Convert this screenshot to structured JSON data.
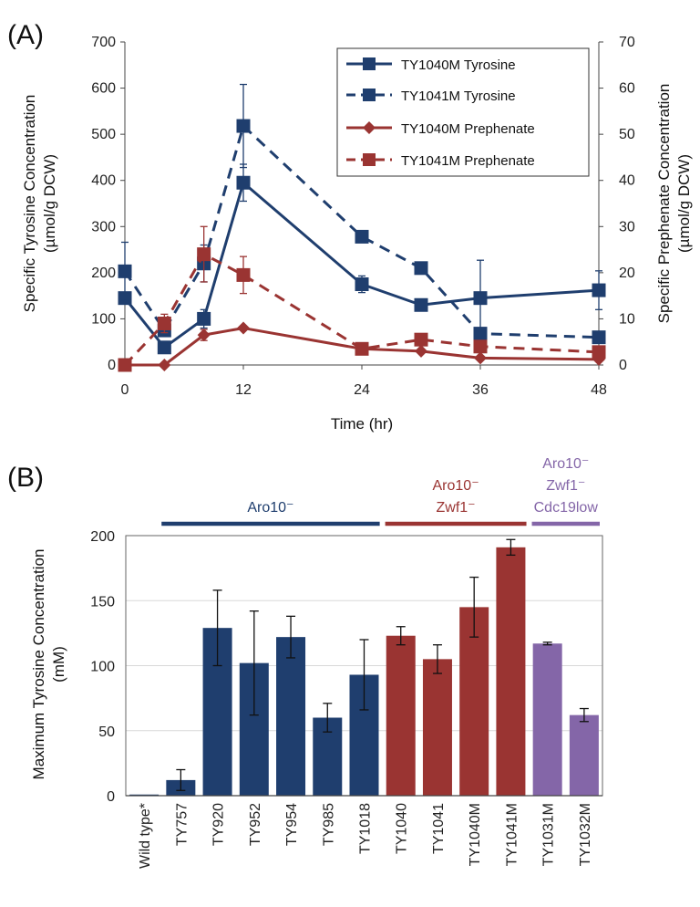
{
  "colors": {
    "blue": "#1f3e6e",
    "red": "#9a3432",
    "purple": "#8466a8",
    "axis": "#444444",
    "grid": "#d9d9d9"
  },
  "panel_labels": {
    "a": "(A)",
    "b": "(B)"
  },
  "chart_data": [
    {
      "type": "line",
      "xlabel": "Time (hr)",
      "ylabel_line1": "Specific Tyrosine Concentration",
      "ylabel_line2": "(µmol/g DCW)",
      "y2label_line1": "Specific Prephenate Concentration",
      "y2label_line2": "(µmol/g DCW)",
      "xlim": [
        0,
        48
      ],
      "ylim": [
        0,
        700
      ],
      "y2lim": [
        0,
        70
      ],
      "xticks": [
        0,
        12,
        24,
        36,
        48
      ],
      "xtick_labels": [
        "0",
        "12",
        "24",
        "36",
        "48"
      ],
      "yticks": [
        0,
        100,
        200,
        300,
        400,
        500,
        600,
        700
      ],
      "ytick_labels": [
        "0",
        "100",
        "200",
        "300",
        "400",
        "500",
        "600",
        "700"
      ],
      "y2ticks": [
        0,
        10,
        20,
        30,
        40,
        50,
        60,
        70
      ],
      "y2tick_labels": [
        "0",
        "10",
        "20",
        "30",
        "40",
        "50",
        "60",
        "70"
      ],
      "grid": false,
      "legend_position": "top-right",
      "series": [
        {
          "name": "TY1040M Tyrosine",
          "axis": "left",
          "color": "#1f3e6e",
          "dash": false,
          "marker": "square",
          "x": [
            0,
            4,
            8,
            12,
            24,
            30,
            36,
            48
          ],
          "y": [
            145,
            38,
            100,
            395,
            175,
            130,
            145,
            162
          ],
          "err": [
            0,
            0,
            20,
            40,
            18,
            10,
            82,
            42
          ]
        },
        {
          "name": "TY1041M Tyrosine",
          "axis": "left",
          "color": "#1f3e6e",
          "dash": true,
          "marker": "square",
          "x": [
            0,
            4,
            8,
            12,
            24,
            30,
            36,
            48
          ],
          "y": [
            203,
            75,
            220,
            518,
            278,
            210,
            68,
            60
          ],
          "err": [
            63,
            0,
            40,
            90,
            0,
            0,
            0,
            0
          ]
        },
        {
          "name": "TY1040M Prephenate",
          "axis": "right",
          "color": "#9a3432",
          "dash": false,
          "marker": "diamond",
          "x": [
            0,
            4,
            8,
            12,
            24,
            30,
            36,
            48
          ],
          "y": [
            0,
            0,
            6.5,
            8,
            3.5,
            3,
            1.5,
            1.2
          ],
          "err": [
            0,
            0,
            1.2,
            0,
            0,
            0,
            0,
            0
          ]
        },
        {
          "name": "TY1041M Prephenate",
          "axis": "right",
          "color": "#9a3432",
          "dash": true,
          "marker": "square",
          "x": [
            0,
            4,
            8,
            12,
            24,
            30,
            36,
            48
          ],
          "y": [
            0,
            9,
            24,
            19.5,
            3.5,
            5.5,
            4,
            2.8
          ],
          "err": [
            0,
            2,
            6,
            4,
            0,
            0,
            0,
            0
          ]
        }
      ]
    },
    {
      "type": "bar",
      "ylabel_line1": "Maximum Tyrosine Concentration",
      "ylabel_line2": "(mM)",
      "ylim": [
        0,
        200
      ],
      "yticks": [
        0,
        50,
        100,
        150,
        200
      ],
      "ytick_labels": [
        "0",
        "50",
        "100",
        "150",
        "200"
      ],
      "grid": true,
      "categories": [
        "Wild type*",
        "TY757",
        "TY920",
        "TY952",
        "TY954",
        "TY985",
        "TY1018",
        "TY1040",
        "TY1041",
        "TY1040M",
        "TY1041M",
        "TY1031M",
        "TY1032M"
      ],
      "values": [
        0,
        12,
        129,
        102,
        122,
        60,
        93,
        123,
        105,
        145,
        191,
        117,
        62
      ],
      "errors": [
        0,
        8,
        29,
        40,
        16,
        11,
        27,
        7,
        11,
        23,
        6,
        1,
        5
      ],
      "bar_colors": [
        "#1f3e6e",
        "#1f3e6e",
        "#1f3e6e",
        "#1f3e6e",
        "#1f3e6e",
        "#1f3e6e",
        "#1f3e6e",
        "#9a3432",
        "#9a3432",
        "#9a3432",
        "#9a3432",
        "#8466a8",
        "#8466a8"
      ],
      "groups": [
        {
          "lines": [
            "Aro10⁻"
          ],
          "first": 1,
          "last": 6,
          "color": "#1f3e6e"
        },
        {
          "lines": [
            "Aro10⁻",
            "Zwf1⁻"
          ],
          "first": 7,
          "last": 10,
          "color": "#9a3432"
        },
        {
          "lines": [
            "Aro10⁻",
            "Zwf1⁻",
            "Cdc19low"
          ],
          "first": 11,
          "last": 12,
          "color": "#8466a8"
        }
      ]
    }
  ]
}
